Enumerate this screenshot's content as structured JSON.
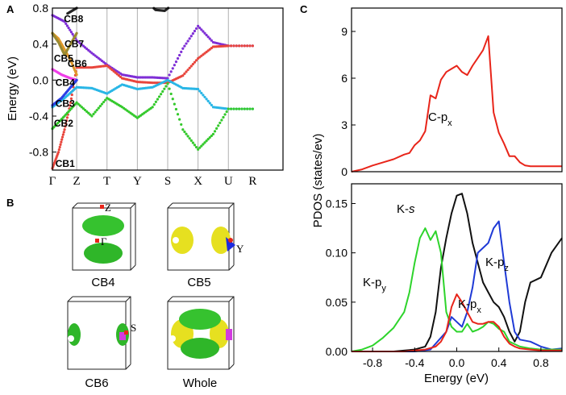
{
  "panels": {
    "a": {
      "letter": "A"
    },
    "b": {
      "letter": "B"
    },
    "c": {
      "letter": "C"
    }
  },
  "chart_data": [
    {
      "id": "band-structure",
      "type": "line",
      "ylabel": "Energy (eV)",
      "ylim": [
        -1.0,
        0.8
      ],
      "yticks": [
        -0.8,
        -0.4,
        0.0,
        0.4,
        0.8
      ],
      "ytick_labels": [
        "-0.8",
        "-0.4",
        "0.0",
        "0.4",
        "0.8"
      ],
      "kpoints": [
        "Γ",
        "Z",
        "T",
        "Y",
        "S",
        "X",
        "U",
        "R"
      ],
      "x_range": [
        0,
        7.6
      ],
      "kpoint_x": [
        0,
        0.8,
        1.8,
        2.8,
        3.8,
        4.8,
        5.8,
        6.6
      ],
      "band_labels": [
        "CB8",
        "CB7",
        "CB6",
        "CB5",
        "CB4",
        "CB3",
        "CB2",
        "CB1"
      ],
      "series": [
        {
          "name": "CB8",
          "color": "#7f2fd6",
          "x": [
            0,
            0.4,
            0.8,
            1.3,
            1.8,
            2.3,
            2.8,
            3.3,
            3.8,
            4.3,
            4.8,
            5.3,
            5.8,
            6.6
          ],
          "y": [
            0.72,
            0.65,
            0.44,
            0.3,
            0.17,
            0.06,
            0.03,
            0.03,
            0.02,
            0.35,
            0.6,
            0.42,
            0.38,
            0.38
          ]
        },
        {
          "name": "CB-red",
          "color": "#e8453c",
          "x": [
            0,
            0.2,
            0.4,
            0.6,
            0.8,
            1.3,
            1.8,
            2.3,
            2.8,
            3.3,
            3.8,
            4.3,
            4.8,
            5.3,
            5.8,
            6.6
          ],
          "y": [
            -0.98,
            -0.8,
            -0.55,
            -0.25,
            0.14,
            0.14,
            0.16,
            0.02,
            -0.02,
            -0.03,
            -0.03,
            0.05,
            0.24,
            0.37,
            0.38,
            0.38
          ]
        },
        {
          "name": "CB-cyan",
          "color": "#29b6e6",
          "x": [
            0,
            0.4,
            0.8,
            1.3,
            1.8,
            2.3,
            2.8,
            3.3,
            3.8,
            4.3,
            4.8,
            5.3,
            5.8,
            6.6
          ],
          "y": [
            -0.3,
            -0.2,
            -0.08,
            -0.09,
            -0.15,
            -0.05,
            -0.1,
            -0.08,
            0.0,
            -0.09,
            -0.1,
            -0.3,
            -0.32,
            -0.32
          ]
        },
        {
          "name": "CB-green",
          "color": "#34c92c",
          "x": [
            0,
            0.4,
            0.8,
            1.3,
            1.8,
            2.3,
            2.8,
            3.3,
            3.8,
            4.3,
            4.8,
            5.3,
            5.8,
            6.6
          ],
          "y": [
            -0.54,
            -0.4,
            -0.25,
            -0.4,
            -0.2,
            -0.3,
            -0.42,
            -0.3,
            -0.04,
            -0.55,
            -0.77,
            -0.6,
            -0.32,
            -0.32
          ]
        },
        {
          "name": "CB-magenta",
          "color": "#f03ee8",
          "x": [
            0,
            0.3,
            0.6,
            0.8
          ],
          "y": [
            0.12,
            0.06,
            0.02,
            0.0
          ]
        },
        {
          "name": "CB-blue",
          "color": "#2b3ee6",
          "x": [
            0,
            0.3,
            0.6,
            0.8
          ],
          "y": [
            -0.28,
            -0.2,
            -0.08,
            0.0
          ]
        },
        {
          "name": "CB-orange",
          "color": "#e0982a",
          "x": [
            0,
            0.2,
            0.4,
            0.6,
            0.8
          ],
          "y": [
            0.52,
            0.46,
            0.34,
            0.22,
            0.06
          ]
        },
        {
          "name": "CB-olive",
          "color": "#9a8a30",
          "x": [
            0,
            0.2,
            0.4,
            0.6,
            0.8
          ],
          "y": [
            0.52,
            0.42,
            0.28,
            0.4,
            0.52
          ]
        },
        {
          "name": "CB-black",
          "color": "#222222",
          "x": [
            0.5,
            0.8,
            1.1
          ],
          "y": [
            0.74,
            0.8,
            0.86
          ]
        },
        {
          "name": "CB-black2",
          "color": "#222222",
          "x": [
            3.15,
            3.4,
            3.7,
            4.05
          ],
          "y": [
            0.86,
            0.78,
            0.77,
            0.86
          ]
        }
      ]
    },
    {
      "id": "pdos-carbon",
      "type": "line",
      "ylim": [
        0,
        10.5
      ],
      "yticks": [
        0,
        3,
        6,
        9
      ],
      "ytick_labels": [
        "0",
        "3",
        "6",
        "9"
      ],
      "xlim": [
        -1.0,
        1.0
      ],
      "annotations": [
        {
          "text": "C-p",
          "sub": "x"
        }
      ],
      "series": [
        {
          "name": "C-px",
          "color": "#e8251a",
          "x": [
            -1.0,
            -0.9,
            -0.8,
            -0.7,
            -0.6,
            -0.5,
            -0.45,
            -0.4,
            -0.35,
            -0.3,
            -0.25,
            -0.2,
            -0.15,
            -0.1,
            -0.05,
            0.0,
            0.05,
            0.1,
            0.15,
            0.2,
            0.25,
            0.3,
            0.35,
            0.4,
            0.45,
            0.5,
            0.55,
            0.6,
            0.65,
            0.7,
            0.8,
            0.9,
            1.0
          ],
          "y": [
            0.0,
            0.15,
            0.4,
            0.6,
            0.8,
            1.1,
            1.2,
            1.7,
            2.0,
            2.6,
            4.9,
            4.7,
            5.9,
            6.4,
            6.6,
            6.8,
            6.4,
            6.2,
            6.8,
            7.3,
            7.8,
            8.7,
            3.8,
            2.5,
            1.8,
            1.0,
            1.0,
            0.6,
            0.4,
            0.35,
            0.35,
            0.35,
            0.35
          ]
        }
      ]
    },
    {
      "id": "pdos-potassium",
      "type": "line",
      "ylabel": "PDOS (states/ev)",
      "xlabel": "Energy (eV)",
      "ylim": [
        0,
        0.17
      ],
      "yticks": [
        0.0,
        0.05,
        0.1,
        0.15
      ],
      "ytick_labels": [
        "0.00",
        "0.05",
        "0.10",
        "0.15"
      ],
      "xlim": [
        -1.0,
        1.0
      ],
      "xticks": [
        -0.8,
        -0.4,
        0.0,
        0.4,
        0.8
      ],
      "xtick_labels": [
        "-0.8",
        "-0.4",
        "0.0",
        "0.4",
        "0.8"
      ],
      "annotations": [
        {
          "text": "K-",
          "italic": "s",
          "sub": ""
        },
        {
          "text": "K-p",
          "sub": "z"
        },
        {
          "text": "K-p",
          "sub": "y"
        },
        {
          "text": "K-p",
          "sub": "x"
        }
      ],
      "series": [
        {
          "name": "K-s",
          "color": "#111111",
          "x": [
            -1.0,
            -0.6,
            -0.4,
            -0.3,
            -0.25,
            -0.2,
            -0.15,
            -0.1,
            -0.05,
            0.0,
            0.05,
            0.1,
            0.15,
            0.2,
            0.25,
            0.3,
            0.35,
            0.4,
            0.45,
            0.5,
            0.55,
            0.6,
            0.65,
            0.7,
            0.8,
            0.9,
            1.0
          ],
          "y": [
            0,
            0,
            0.002,
            0.005,
            0.015,
            0.04,
            0.085,
            0.115,
            0.14,
            0.158,
            0.16,
            0.14,
            0.11,
            0.09,
            0.07,
            0.06,
            0.05,
            0.045,
            0.035,
            0.02,
            0.01,
            0.02,
            0.05,
            0.07,
            0.075,
            0.1,
            0.115
          ]
        },
        {
          "name": "K-pz",
          "color": "#1f3ad6",
          "x": [
            -1.0,
            -0.4,
            -0.25,
            -0.1,
            -0.05,
            0.0,
            0.05,
            0.1,
            0.15,
            0.2,
            0.25,
            0.3,
            0.35,
            0.4,
            0.45,
            0.5,
            0.55,
            0.6,
            0.7,
            0.8,
            0.9,
            1.0
          ],
          "y": [
            0,
            0,
            0.002,
            0.02,
            0.035,
            0.03,
            0.025,
            0.04,
            0.065,
            0.1,
            0.105,
            0.11,
            0.125,
            0.132,
            0.09,
            0.05,
            0.02,
            0.012,
            0.01,
            0.005,
            0.002,
            0.003
          ]
        },
        {
          "name": "K-py",
          "color": "#2ed42c",
          "x": [
            -1.0,
            -0.9,
            -0.8,
            -0.7,
            -0.6,
            -0.5,
            -0.45,
            -0.4,
            -0.35,
            -0.3,
            -0.25,
            -0.2,
            -0.15,
            -0.1,
            -0.05,
            0.0,
            0.05,
            0.1,
            0.15,
            0.2,
            0.25,
            0.3,
            0.35,
            0.4,
            0.45,
            0.5,
            0.6,
            0.7,
            0.8,
            0.9,
            1.0
          ],
          "y": [
            0,
            0.002,
            0.006,
            0.014,
            0.024,
            0.04,
            0.06,
            0.09,
            0.115,
            0.125,
            0.113,
            0.122,
            0.1,
            0.04,
            0.025,
            0.02,
            0.02,
            0.028,
            0.02,
            0.022,
            0.025,
            0.03,
            0.028,
            0.023,
            0.02,
            0.01,
            0.005,
            0.003,
            0.002,
            0.002,
            0.002
          ]
        },
        {
          "name": "K-px",
          "color": "#e8251a",
          "x": [
            -1.0,
            -0.5,
            -0.3,
            -0.2,
            -0.15,
            -0.1,
            -0.05,
            0.0,
            0.05,
            0.1,
            0.15,
            0.2,
            0.25,
            0.3,
            0.35,
            0.4,
            0.45,
            0.5,
            0.55,
            0.6,
            0.7,
            0.8,
            0.9,
            1.0
          ],
          "y": [
            0,
            0,
            0.002,
            0.005,
            0.01,
            0.02,
            0.045,
            0.058,
            0.05,
            0.04,
            0.03,
            0.028,
            0.028,
            0.03,
            0.03,
            0.025,
            0.015,
            0.008,
            0.005,
            0.003,
            0.002,
            0.001,
            0.001,
            0.001
          ]
        }
      ]
    }
  ],
  "fermi_surfaces": [
    {
      "label": "CB4",
      "markers": [
        "Z",
        "Γ"
      ]
    },
    {
      "label": "CB5",
      "markers": [
        "Y"
      ]
    },
    {
      "label": "CB6",
      "markers": [
        "S"
      ]
    },
    {
      "label": "Whole",
      "markers": []
    }
  ],
  "colors": {
    "green": "#36c22f",
    "yellow": "#e6e020",
    "magenta": "#d23be0",
    "blue": "#1c2ae0",
    "red": "#e8251a"
  }
}
